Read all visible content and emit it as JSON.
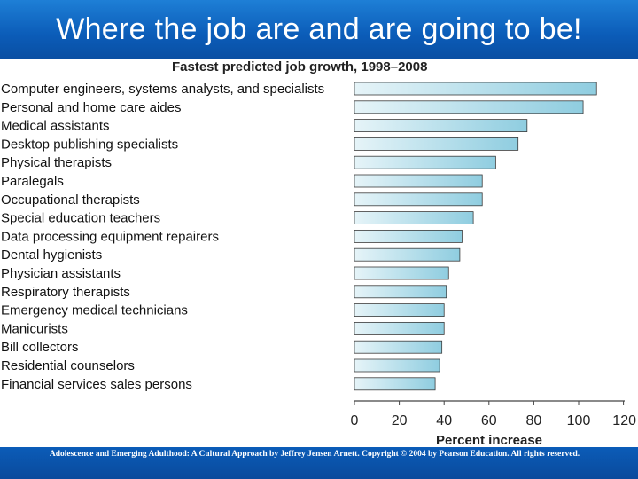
{
  "slide": {
    "title": "Where the job are and are going to be!",
    "footer": "Adolescence and Emerging Adulthood: A Cultural Approach by Jeffrey Jensen Arnett.  Copyright © 2004 by Pearson Education. All rights reserved."
  },
  "colors": {
    "title_bar": "#0b5cb8",
    "bar_fill_light": "#e6f4f8",
    "bar_fill_dark": "#8fcde0",
    "bar_stroke": "#3a3a3a"
  },
  "chart_data": {
    "type": "bar",
    "orientation": "horizontal",
    "title": "Fastest predicted job growth, 1998–2008",
    "xlabel": "Percent increase",
    "ylabel": "",
    "xlim": [
      0,
      120
    ],
    "ticks": [
      0,
      20,
      40,
      60,
      80,
      100,
      120
    ],
    "grid": false,
    "categories": [
      "Computer engineers, systems analysts, and specialists",
      "Personal and home care aides",
      "Medical assistants",
      "Desktop publishing specialists",
      "Physical therapists",
      "Paralegals",
      "Occupational therapists",
      "Special education teachers",
      "Data processing equipment repairers",
      "Dental hygienists",
      "Physician assistants",
      "Respiratory therapists",
      "Emergency medical technicians",
      "Manicurists",
      "Bill collectors",
      "Residential counselors",
      "Financial services sales persons"
    ],
    "values": [
      108,
      102,
      77,
      73,
      63,
      57,
      57,
      53,
      48,
      47,
      42,
      41,
      40,
      40,
      39,
      38,
      36
    ]
  }
}
